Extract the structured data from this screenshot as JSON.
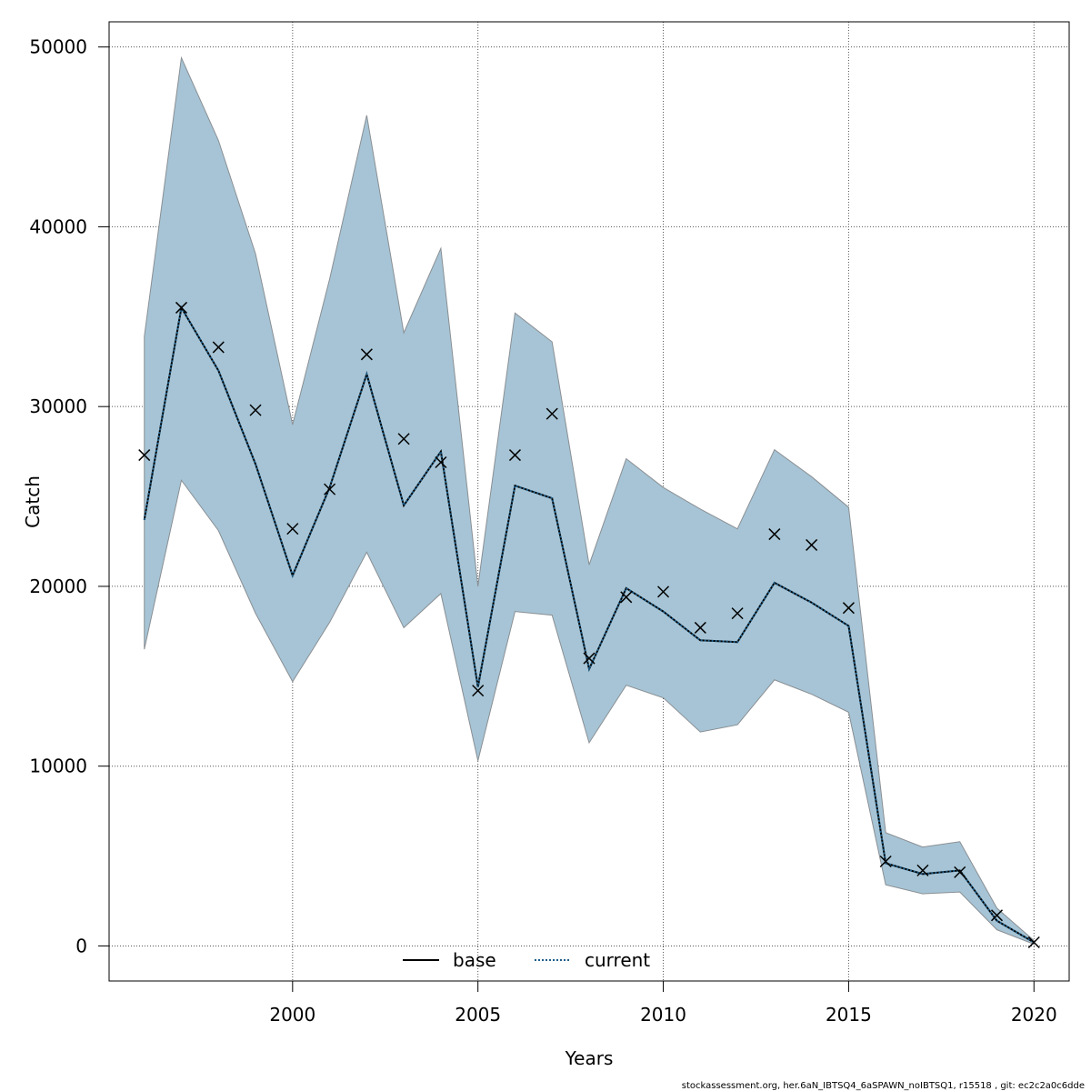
{
  "chart_data": {
    "type": "line",
    "xlabel": "Years",
    "ylabel": "Catch",
    "xlim": [
      1995.05,
      2020.95
    ],
    "ylim": [
      -1950,
      51400
    ],
    "x_ticks": [
      2000,
      2005,
      2010,
      2015,
      2020
    ],
    "y_ticks": [
      0,
      10000,
      20000,
      30000,
      40000,
      50000
    ],
    "grid": true,
    "legend_position": "bottom-center",
    "colors": {
      "band_fill": "#a6c4d5",
      "band_edge": "#8a8f94",
      "current_line": "#1f5f8b",
      "base_line": "#000000",
      "observed_marker": "#000000"
    },
    "x": [
      1996,
      1997,
      1998,
      1999,
      2000,
      2001,
      2002,
      2003,
      2004,
      2005,
      2006,
      2007,
      2008,
      2009,
      2010,
      2011,
      2012,
      2013,
      2014,
      2015,
      2016,
      2017,
      2018,
      2019,
      2020
    ],
    "series": [
      {
        "name": "base",
        "style": "solid",
        "values": [
          23700,
          35500,
          32000,
          26800,
          20600,
          25500,
          31800,
          24500,
          27500,
          14400,
          25600,
          24900,
          15400,
          19900,
          18600,
          17000,
          16900,
          20200,
          19100,
          17800,
          4600,
          4000,
          4200,
          1400,
          200
        ]
      },
      {
        "name": "current",
        "style": "dotted",
        "values": [
          23700,
          35500,
          32000,
          26800,
          20600,
          25500,
          31800,
          24500,
          27500,
          14400,
          25600,
          24900,
          15400,
          19900,
          18600,
          17000,
          16900,
          20200,
          19100,
          17800,
          4600,
          4000,
          4200,
          1400,
          200
        ]
      }
    ],
    "confidence_band": {
      "lower": [
        16500,
        25900,
        23100,
        18500,
        14700,
        18000,
        21900,
        17700,
        19600,
        10300,
        18600,
        18400,
        11300,
        14500,
        13800,
        11900,
        12300,
        14800,
        14000,
        13000,
        3400,
        2900,
        3000,
        900,
        100
      ],
      "upper": [
        33900,
        49400,
        44800,
        38500,
        29000,
        37100,
        46200,
        34100,
        38800,
        20000,
        35200,
        33600,
        21200,
        27100,
        25500,
        24300,
        23200,
        27600,
        26100,
        24400,
        6300,
        5500,
        5800,
        2100,
        300
      ]
    },
    "observed": [
      27300,
      35500,
      33300,
      29800,
      23200,
      25400,
      32900,
      28200,
      26900,
      14200,
      27300,
      29600,
      16000,
      19400,
      19700,
      17700,
      18500,
      22900,
      22300,
      18800,
      4700,
      4200,
      4100,
      1700,
      200
    ]
  },
  "footnote": "stockassessment.org, her.6aN_IBTSQ4_6aSPAWN_noIBTSQ1, r15518 , git: ec2c2a0c6dde"
}
